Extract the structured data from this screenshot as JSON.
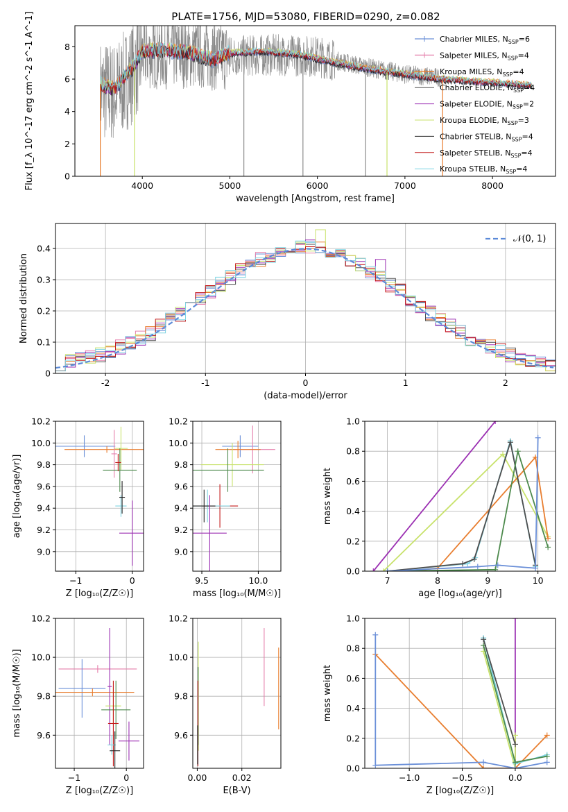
{
  "figure_title": "PLATE=1756, MJD=53080, FIBERID=0290, z=0.082",
  "colors": {
    "chab_miles": "#6a8fd8",
    "salp_miles": "#e57fab",
    "krou_miles": "#e87d2e",
    "chab_elodie": "#4e4e4e",
    "salp_elodie": "#9b2fb2",
    "krou_elodie": "#c8e26b",
    "chab_stelib": "#202020",
    "salp_stelib": "#c41a1a",
    "krou_stelib": "#7fd4e2",
    "data": "#8a8a8a",
    "green": "#4d8a4d",
    "normal": "#5b8ad8"
  },
  "chart_data": [
    {
      "id": "spectrum",
      "type": "line",
      "xlabel": "wavelength [Angstrom, rest frame]",
      "ylabel": "Flux [f_λ 10^-17 erg cm^-2 s^-1 A^-1]",
      "xlim": [
        3230,
        8720
      ],
      "ylim": [
        0,
        9.3
      ],
      "xticks": [
        4000,
        5000,
        6000,
        7000,
        8000
      ],
      "yticks": [
        0,
        2,
        4,
        6,
        8
      ],
      "legend": {
        "placement": "right",
        "entries": [
          {
            "key": "chab_miles",
            "text": "Chabrier MILES, N",
            "sub": "SSP",
            "suffix": "=6"
          },
          {
            "key": "salp_miles",
            "text": "Salpeter MILES, N",
            "sub": "SSP",
            "suffix": "=4"
          },
          {
            "key": "krou_miles",
            "text": "Kroupa MILES, N",
            "sub": "SSP",
            "suffix": "=4"
          },
          {
            "key": "chab_elodie",
            "text": "Chabrier ELODIE, N",
            "sub": "SSP",
            "suffix": "=4"
          },
          {
            "key": "salp_elodie",
            "text": "Salpeter ELODIE, N",
            "sub": "SSP",
            "suffix": "=2"
          },
          {
            "key": "krou_elodie",
            "text": "Kroupa ELODIE, N",
            "sub": "SSP",
            "suffix": "=3"
          },
          {
            "key": "chab_stelib",
            "text": "Chabrier STELIB, N",
            "sub": "SSP",
            "suffix": "=4"
          },
          {
            "key": "salp_stelib",
            "text": "Salpeter STELIB, N",
            "sub": "SSP",
            "suffix": "=4"
          },
          {
            "key": "krou_stelib",
            "text": "Kroupa STELIB, N",
            "sub": "SSP",
            "suffix": "=4"
          }
        ]
      },
      "model_continuum": [
        [
          3520,
          5.7
        ],
        [
          3650,
          5.4
        ],
        [
          3700,
          5.5
        ],
        [
          3800,
          6.2
        ],
        [
          3900,
          6.8
        ],
        [
          4000,
          7.7
        ],
        [
          4200,
          7.8
        ],
        [
          4500,
          7.7
        ],
        [
          4800,
          7.2
        ],
        [
          5000,
          7.6
        ],
        [
          5400,
          7.7
        ],
        [
          5800,
          7.5
        ],
        [
          6200,
          7.0
        ],
        [
          6600,
          6.6
        ],
        [
          7000,
          6.3
        ],
        [
          7400,
          6.0
        ],
        [
          7800,
          5.85
        ],
        [
          8200,
          5.7
        ],
        [
          8450,
          5.6
        ]
      ],
      "data_continuum": [
        [
          3520,
          5.3
        ],
        [
          3700,
          5.2
        ],
        [
          3900,
          6.5
        ],
        [
          4000,
          7.5
        ],
        [
          4500,
          7.6
        ],
        [
          5000,
          7.4
        ],
        [
          5500,
          7.5
        ],
        [
          6000,
          7.4
        ],
        [
          6500,
          6.8
        ],
        [
          7000,
          6.3
        ],
        [
          7400,
          6.1
        ],
        [
          7800,
          5.9
        ],
        [
          8450,
          5.6
        ]
      ],
      "data_range": [
        3520,
        8450
      ],
      "dips": [
        {
          "x": 3520,
          "y": 0,
          "key": "krou_miles"
        },
        {
          "x": 3910,
          "y": 0,
          "key": "krou_elodie"
        },
        {
          "x": 5160,
          "y": 0,
          "key": "data"
        },
        {
          "x": 5835,
          "y": 0,
          "key": "data"
        },
        {
          "x": 6550,
          "y": 0,
          "key": "data"
        },
        {
          "x": 6795,
          "y": 0,
          "key": "krou_elodie"
        },
        {
          "x": 7430,
          "y": 0,
          "key": "krou_miles"
        }
      ]
    },
    {
      "id": "residuals",
      "type": "histogram",
      "xlabel": "(data-model)/error",
      "ylabel": "Normed distribution",
      "xlim": [
        -2.5,
        2.5
      ],
      "ylim": [
        0,
        0.48
      ],
      "xticks": [
        -2,
        -1,
        0,
        1,
        2
      ],
      "yticks": [
        0,
        0.1,
        0.2,
        0.3,
        0.4
      ],
      "bin_width": 0.1,
      "legend": {
        "placement": "top-right",
        "text": "𝒩(0, 1)"
      },
      "spiky": [
        {
          "key": "krou_elodie",
          "x": 0.1,
          "y": 0.46
        },
        {
          "key": "salp_elodie",
          "x": 0.7,
          "y": 0.365
        }
      ]
    },
    {
      "id": "age_Z",
      "type": "scatter",
      "xlabel": "Z [log₁₀(Z/Z☉)]",
      "ylabel": "age  [log₁₀(age/yr)]",
      "xlim": [
        -1.36,
        0.2
      ],
      "ylim": [
        8.82,
        10.2
      ],
      "xticks": [
        -1,
        0
      ],
      "xticklabels": [
        "−1",
        "0"
      ],
      "yticks": [
        9.0,
        9.2,
        9.4,
        9.6,
        9.8,
        10.0,
        10.2
      ],
      "yticklabels": [
        "9.0",
        "9.2",
        "9.4",
        "9.6",
        "9.8",
        "10.0",
        "10.2"
      ],
      "points": [
        {
          "key": "chab_miles",
          "x": -0.85,
          "xerr": 0.55,
          "y": 9.97,
          "yerr": 0.1
        },
        {
          "key": "krou_miles",
          "x": -0.45,
          "xerr": 0.75,
          "y": 9.94,
          "yerr": 0.03
        },
        {
          "key": "krou_elodie",
          "x": -0.2,
          "xerr": 0.12,
          "y": 9.95,
          "yerr": 0.2
        },
        {
          "key": "salp_miles",
          "x": -0.32,
          "xerr": 0.05,
          "y": 9.9,
          "yerr": 0.22
        },
        {
          "key": "green",
          "x": -0.22,
          "xerr": 0.3,
          "y": 9.75,
          "yerr": 0.2
        },
        {
          "key": "salp_stelib",
          "x": -0.25,
          "xerr": 0.05,
          "y": 9.82,
          "yerr": 0.08
        },
        {
          "key": "krou_stelib",
          "x": -0.2,
          "xerr": 0.1,
          "y": 9.42,
          "yerr": 0.1
        },
        {
          "key": "chab_stelib",
          "x": -0.18,
          "xerr": 0.05,
          "y": 9.5,
          "yerr": 0.15
        },
        {
          "key": "salp_elodie",
          "x": 0.0,
          "xerr": 0.23,
          "y": 9.17,
          "yerr": 0.3
        }
      ]
    },
    {
      "id": "age_mass",
      "type": "scatter",
      "xlabel": "mass [log₁₀(M/M☉)]",
      "ylabel": "",
      "xlim": [
        9.42,
        10.2
      ],
      "ylim": [
        8.82,
        10.2
      ],
      "xticks": [
        9.5,
        10.0
      ],
      "xticklabels": [
        "9.5",
        "10.0"
      ],
      "yticks": [
        9.0,
        9.2,
        9.4,
        9.6,
        9.8,
        10.0,
        10.2
      ],
      "yticklabels": [
        "9.0",
        "9.2",
        "9.4",
        "9.6",
        "9.8",
        "10.0",
        "10.2"
      ],
      "points": [
        {
          "key": "chab_miles",
          "x": 9.84,
          "xerr": 0.16,
          "y": 9.97,
          "yerr": 0.1
        },
        {
          "key": "salp_miles",
          "x": 9.95,
          "xerr": 0.2,
          "y": 9.94,
          "yerr": 0.22
        },
        {
          "key": "krou_miles",
          "x": 9.82,
          "xerr": 0.2,
          "y": 9.94,
          "yerr": 0.08
        },
        {
          "key": "krou_elodie",
          "x": 9.77,
          "xerr": 0.28,
          "y": 9.8,
          "yerr": 0.2
        },
        {
          "key": "green",
          "x": 9.73,
          "xerr": 0.32,
          "y": 9.75,
          "yerr": 0.2
        },
        {
          "key": "salp_stelib",
          "x": 9.66,
          "xerr": 0.16,
          "y": 9.42,
          "yerr": 0.2
        },
        {
          "key": "krou_stelib",
          "x": 9.55,
          "xerr": 0.2,
          "y": 9.42,
          "yerr": 0.15
        },
        {
          "key": "chab_stelib",
          "x": 9.52,
          "xerr": 0.1,
          "y": 9.42,
          "yerr": 0.15
        },
        {
          "key": "salp_elodie",
          "x": 9.57,
          "xerr": 0.15,
          "y": 9.17,
          "yerr": 0.35
        }
      ]
    },
    {
      "id": "weight_age",
      "type": "line",
      "xlabel": "age  [log₁₀(age/yr)]",
      "ylabel": "mass weight",
      "xlim": [
        6.55,
        10.35
      ],
      "ylim": [
        0,
        1.0
      ],
      "xticks": [
        7,
        8,
        9,
        10
      ],
      "xticklabels": [
        "7",
        "8",
        "9",
        "10"
      ],
      "yticks": [
        0,
        0.2,
        0.4,
        0.6,
        0.8,
        1.0
      ],
      "yticklabels": [
        "0.0",
        "0.2",
        "0.4",
        "0.6",
        "0.8",
        "1.0"
      ],
      "series": [
        {
          "key": "salp_elodie",
          "points": [
            [
              6.72,
              0
            ],
            [
              9.15,
              1.0
            ]
          ]
        },
        {
          "key": "krou_elodie",
          "points": [
            [
              6.92,
              0
            ],
            [
              9.3,
              0.78
            ],
            [
              10.2,
              0.23
            ]
          ]
        },
        {
          "key": "krou_miles",
          "points": [
            [
              7.45,
              0
            ],
            [
              8.0,
              0.02
            ],
            [
              9.95,
              0.76
            ],
            [
              10.2,
              0.22
            ]
          ]
        },
        {
          "key": "krou_stelib",
          "points": [
            [
              7.0,
              0
            ],
            [
              8.6,
              0.05
            ],
            [
              8.75,
              0.09
            ],
            [
              9.45,
              0.87
            ],
            [
              9.95,
              0.03
            ]
          ]
        },
        {
          "key": "chab_elodie",
          "points": [
            [
              7.0,
              0
            ],
            [
              8.5,
              0.05
            ],
            [
              8.73,
              0.08
            ],
            [
              9.45,
              0.86
            ],
            [
              9.95,
              0.04
            ]
          ]
        },
        {
          "key": "green",
          "points": [
            [
              7.0,
              0
            ],
            [
              9.15,
              0.01
            ],
            [
              9.6,
              0.8
            ],
            [
              10.2,
              0.16
            ]
          ]
        },
        {
          "key": "chab_miles",
          "points": [
            [
              7.0,
              0
            ],
            [
              8.8,
              0.03
            ],
            [
              9.2,
              0.04
            ],
            [
              9.95,
              0.02
            ],
            [
              10.0,
              0.89
            ]
          ]
        }
      ]
    },
    {
      "id": "mass_Z",
      "type": "scatter",
      "xlabel": "Z [log₁₀(Z/Z☉)]",
      "ylabel": "mass [log₁₀(M/M☉)]",
      "xlim": [
        -1.36,
        0.33
      ],
      "ylim": [
        9.43,
        10.2
      ],
      "xticks": [
        -1,
        0
      ],
      "xticklabels": [
        "−1",
        "0"
      ],
      "yticks": [
        9.6,
        9.8,
        10.0,
        10.2
      ],
      "yticklabels": [
        "9.6",
        "9.8",
        "10.0",
        "10.2"
      ],
      "points": [
        {
          "key": "salp_miles",
          "x": -0.55,
          "xerr": 0.75,
          "y": 9.94,
          "yerr": 0.02
        },
        {
          "key": "chab_miles",
          "x": -0.85,
          "xerr": 0.45,
          "y": 9.84,
          "yerr": 0.15
        },
        {
          "key": "krou_miles",
          "x": -0.65,
          "xerr": 0.8,
          "y": 9.82,
          "yerr": 0.02
        },
        {
          "key": "salp_elodie",
          "x": -0.32,
          "xerr": 0.04,
          "y": 9.85,
          "yerr": 0.3
        },
        {
          "key": "krou_elodie",
          "x": -0.25,
          "xerr": 0.15,
          "y": 9.75,
          "yerr": 0.1
        },
        {
          "key": "green",
          "x": -0.2,
          "xerr": 0.28,
          "y": 9.73,
          "yerr": 0.15
        },
        {
          "key": "salp_stelib",
          "x": -0.25,
          "xerr": 0.1,
          "y": 9.66,
          "yerr": 0.22
        },
        {
          "key": "krou_stelib",
          "x": -0.28,
          "xerr": 0.08,
          "y": 9.55,
          "yerr": 0.05
        },
        {
          "key": "chab_stelib",
          "x": -0.22,
          "xerr": 0.1,
          "y": 9.52,
          "yerr": 0.1
        },
        {
          "key": "salp_elodie",
          "x": 0.05,
          "xerr": 0.2,
          "y": 9.57,
          "yerr": 0.1
        }
      ]
    },
    {
      "id": "mass_ebv",
      "type": "scatter",
      "xlabel": "E(B-V)",
      "ylabel": "",
      "xlim": [
        -0.002,
        0.0375
      ],
      "ylim": [
        9.43,
        10.2
      ],
      "xticks": [
        0.0,
        0.02
      ],
      "xticklabels": [
        "0.00",
        "0.02"
      ],
      "yticks": [
        9.6,
        9.8,
        10.0,
        10.2
      ],
      "yticklabels": [
        "9.6",
        "9.8",
        "10.0",
        "10.2"
      ],
      "points": [
        {
          "key": "krou_elodie",
          "x": 0.0005,
          "xerr": 0,
          "y": 9.8,
          "yerr": 0.28
        },
        {
          "key": "green",
          "x": 0.0004,
          "xerr": 0,
          "y": 9.75,
          "yerr": 0.2
        },
        {
          "key": "salp_stelib",
          "x": 0.0003,
          "xerr": 0,
          "y": 9.66,
          "yerr": 0.22
        },
        {
          "key": "chab_stelib",
          "x": 0.0002,
          "xerr": 0,
          "y": 9.55,
          "yerr": 0.1
        },
        {
          "key": "salp_miles",
          "x": 0.03,
          "xerr": 0,
          "y": 9.95,
          "yerr": 0.2
        },
        {
          "key": "krou_miles",
          "x": 0.0365,
          "xerr": 0,
          "y": 9.84,
          "yerr": 0.21
        }
      ]
    },
    {
      "id": "weight_Z",
      "type": "line",
      "xlabel": "Z [log₁₀(Z/Z☉)]",
      "ylabel": "mass weight",
      "xlim": [
        -1.42,
        0.38
      ],
      "ylim": [
        0,
        1.0
      ],
      "xticks": [
        -1.0,
        -0.5,
        0.0
      ],
      "xticklabels": [
        "−1.0",
        "−0.5",
        "0.0"
      ],
      "yticks": [
        0,
        0.2,
        0.4,
        0.6,
        0.8,
        1.0
      ],
      "yticklabels": [
        "0.0",
        "0.2",
        "0.4",
        "0.6",
        "0.8",
        "1.0"
      ],
      "series": [
        {
          "key": "salp_elodie",
          "points": [
            [
              0.0,
              1.0
            ],
            [
              0.0,
              0.0
            ]
          ]
        },
        {
          "key": "krou_miles",
          "points": [
            [
              -1.32,
              0.76
            ],
            [
              -0.3,
              0.0
            ],
            [
              0.0,
              0.0
            ],
            [
              0.3,
              0.22
            ]
          ]
        },
        {
          "key": "krou_elodie",
          "points": [
            [
              -0.3,
              0.78
            ],
            [
              0.0,
              0.0
            ],
            [
              0.0,
              0.22
            ]
          ]
        },
        {
          "key": "krou_stelib",
          "points": [
            [
              -0.3,
              0.87
            ],
            [
              0.0,
              0.03
            ],
            [
              0.3,
              0.09
            ]
          ]
        },
        {
          "key": "green",
          "points": [
            [
              -0.3,
              0.82
            ],
            [
              0.0,
              0.04
            ],
            [
              0.3,
              0.08
            ]
          ]
        },
        {
          "key": "chab_elodie",
          "points": [
            [
              -0.3,
              0.86
            ],
            [
              0.0,
              0.16
            ]
          ]
        },
        {
          "key": "chab_miles",
          "points": [
            [
              -1.32,
              0.89
            ],
            [
              -1.32,
              0.02
            ],
            [
              -0.3,
              0.04
            ],
            [
              0.0,
              0.0
            ],
            [
              0.3,
              0.04
            ]
          ]
        }
      ]
    }
  ]
}
